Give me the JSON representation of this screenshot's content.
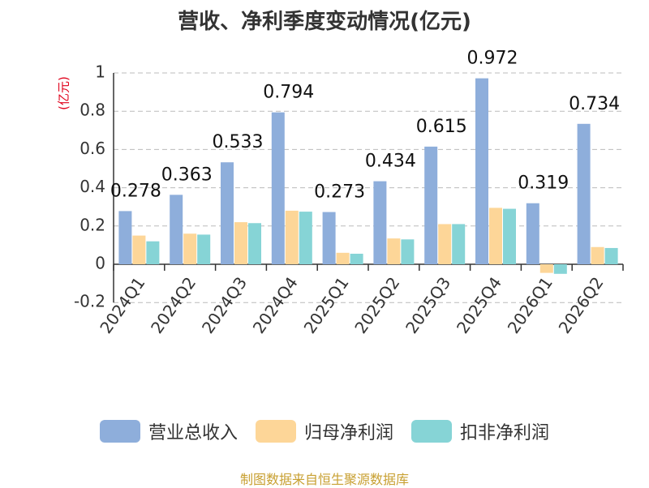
{
  "title": "营收、净利季度变动情况(亿元)",
  "unit_label": "(亿元)",
  "source": "制图数据来自恒生聚源数据库",
  "colors": {
    "revenue": "#8eaedb",
    "net_profit": "#fdd698",
    "deducted_profit": "#86d4d6"
  },
  "chart_data": {
    "type": "bar",
    "title": "营收、净利季度变动情况(亿元)",
    "ylabel": "(亿元)",
    "ylim": [
      -0.2,
      1
    ],
    "yticks": [
      -0.2,
      0,
      0.2,
      0.4,
      0.6,
      0.8,
      1
    ],
    "ytick_labels": [
      "-0.2",
      "0",
      "0.2",
      "0.4",
      "0.6",
      "0.8",
      "1"
    ],
    "grid": true,
    "legend": "bottom",
    "categories": [
      "2024Q1",
      "2024Q2",
      "2024Q3",
      "2024Q4",
      "2025Q1",
      "2025Q2",
      "2025Q3",
      "2025Q4",
      "2026Q1",
      "2026Q2"
    ],
    "series": [
      {
        "name": "营业总收入",
        "values": [
          0.278,
          0.363,
          0.533,
          0.794,
          0.273,
          0.434,
          0.615,
          0.972,
          0.319,
          0.734
        ],
        "data_labels": [
          "0.278",
          "0.363",
          "0.533",
          "0.794",
          "0.273",
          "0.434",
          "0.615",
          "0.972",
          "0.319",
          "0.734"
        ]
      },
      {
        "name": "归母净利润",
        "values": [
          0.15,
          0.16,
          0.22,
          0.28,
          0.06,
          0.135,
          0.21,
          0.295,
          -0.045,
          0.09
        ]
      },
      {
        "name": "扣非净利润",
        "values": [
          0.12,
          0.155,
          0.215,
          0.275,
          0.055,
          0.13,
          0.21,
          0.29,
          -0.05,
          0.085
        ]
      }
    ]
  }
}
